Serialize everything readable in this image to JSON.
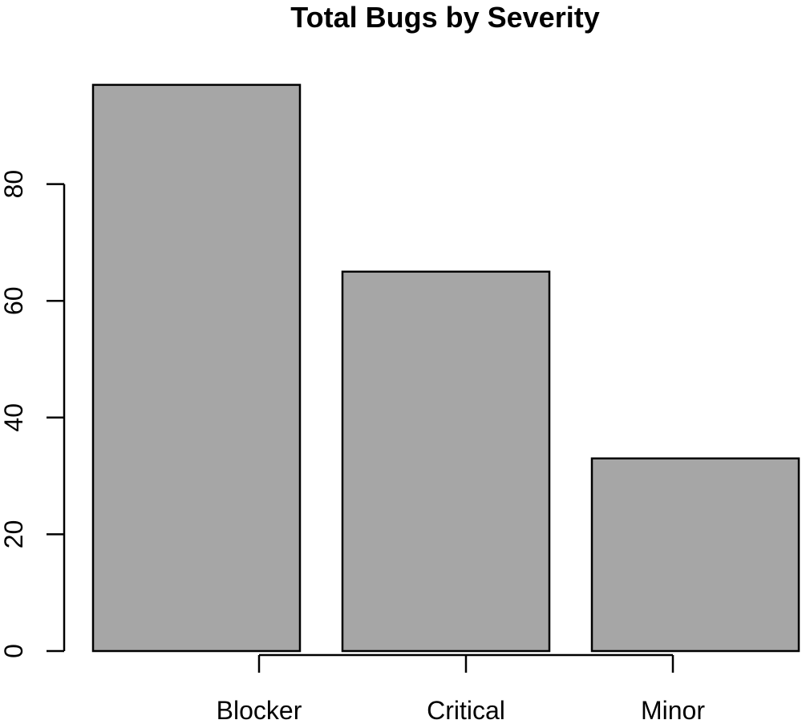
{
  "chart_data": {
    "type": "bar",
    "title": "Total Bugs by Severity",
    "categories": [
      "Blocker",
      "Critical",
      "Minor"
    ],
    "values": [
      97,
      65,
      33
    ],
    "xlabel": "",
    "ylabel": "",
    "ylim": [
      0,
      97
    ],
    "yticks": [
      0,
      20,
      40,
      60,
      80
    ],
    "grid": false,
    "legend": "none",
    "colors": {
      "bar_fill": "#a6a6a6",
      "bar_stroke": "#000000",
      "axis": "#000000"
    }
  }
}
